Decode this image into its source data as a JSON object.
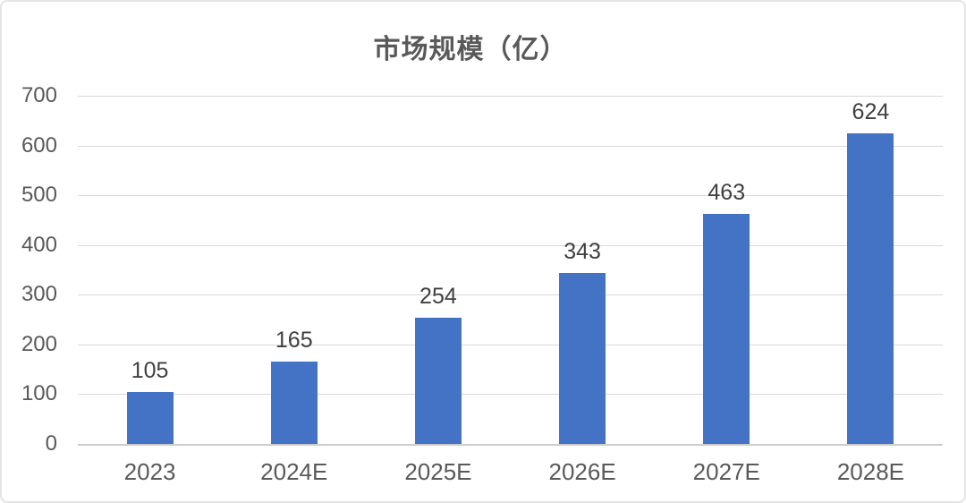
{
  "chart_data": {
    "type": "bar",
    "title": "市场规模（亿）",
    "categories": [
      "2023",
      "2024E",
      "2025E",
      "2026E",
      "2027E",
      "2028E"
    ],
    "values": [
      105,
      165,
      254,
      343,
      463,
      624
    ],
    "xlabel": "",
    "ylabel": "",
    "ylim": [
      0,
      700
    ],
    "yticks": [
      0,
      100,
      200,
      300,
      400,
      500,
      600,
      700
    ],
    "grid": "horizontal",
    "legend": "none",
    "data_labels": "above-bars",
    "colors": {
      "bar": "#4472c4",
      "gridline": "#d9d9d9",
      "axis_line": "#cccccc",
      "title_text": "#595959",
      "tick_text": "#595959",
      "data_label_text": "#404040",
      "background": "#ffffff"
    }
  }
}
